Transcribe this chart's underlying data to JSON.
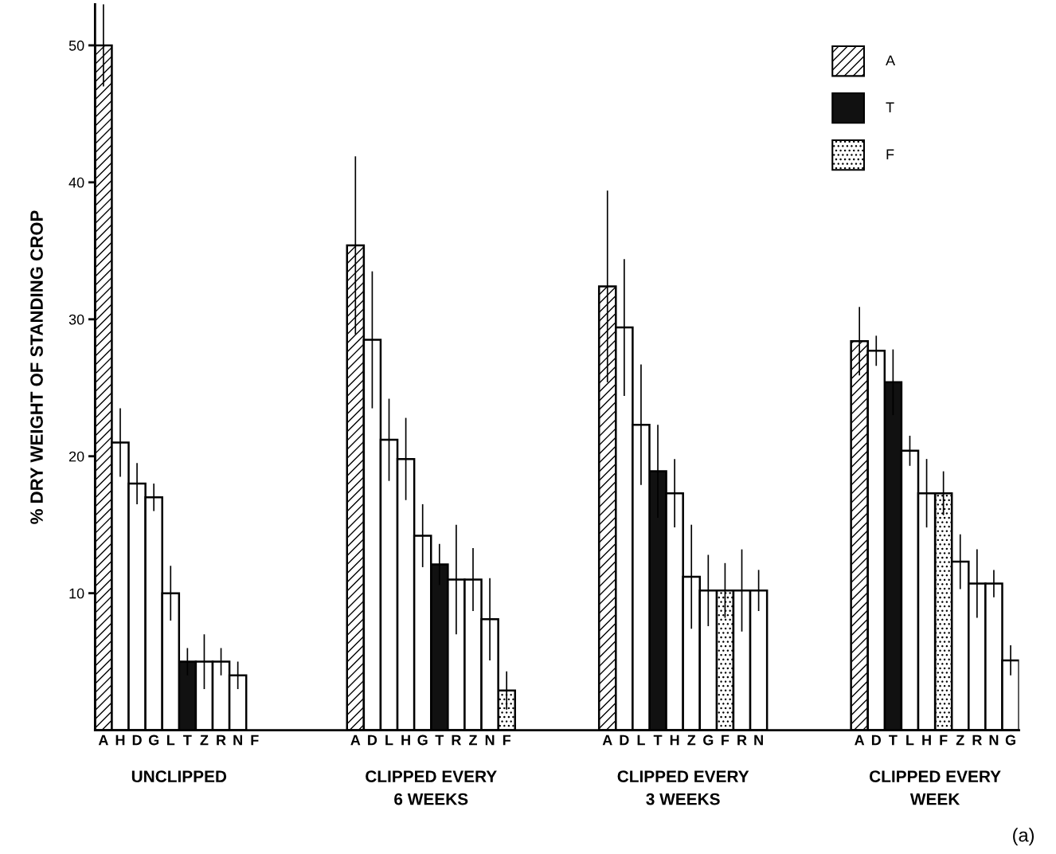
{
  "chart_data": {
    "type": "bar",
    "ylabel": "% DRY WEIGHT OF STANDING CROP",
    "categories": [
      "A",
      "H",
      "D",
      "G",
      "L",
      "T",
      "Z",
      "R",
      "N",
      "F",
      null,
      null,
      null,
      null,
      null,
      "A",
      "D",
      "L",
      "H",
      "G",
      "T",
      "R",
      "Z",
      "N",
      "F",
      null,
      null,
      null,
      null,
      null,
      "A",
      "D",
      "L",
      "T",
      "H",
      "Z",
      "G",
      "F",
      "R",
      "N",
      null,
      null,
      null,
      null,
      null,
      "A",
      "D",
      "T",
      "L",
      "H",
      "F",
      "Z",
      "R",
      "N",
      "G"
    ],
    "ylim": [
      0,
      53
    ],
    "yticks": [
      10,
      20,
      30,
      40,
      50
    ],
    "legend": "top right",
    "annotations": [
      "UNCLIPPED",
      "CLIPPED EVERY\n6 WEEKS",
      "CLIPPED EVERY\n3 WEEKS",
      "CLIPPED EVERY\nWEEK",
      "(a)"
    ],
    "series": [
      {
        "name": "A",
        "color": "#000000",
        "values": [
          50,
          null,
          null,
          null,
          null,
          null,
          null,
          null,
          null,
          null,
          null,
          null,
          null,
          null,
          null,
          35.4,
          null,
          null,
          null,
          null,
          null,
          null,
          null,
          null,
          null,
          null,
          null,
          null,
          null,
          null,
          32.4,
          null,
          null,
          null,
          null,
          null,
          null,
          null,
          null,
          null,
          null,
          null,
          null,
          null,
          null,
          28.4,
          null,
          null,
          null,
          null,
          null,
          null,
          null,
          null,
          null
        ],
        "errors": [
          3,
          null,
          null,
          null,
          null,
          null,
          null,
          null,
          null,
          null,
          null,
          null,
          null,
          null,
          null,
          6.5,
          null,
          null,
          null,
          null,
          null,
          null,
          null,
          null,
          null,
          null,
          null,
          null,
          null,
          null,
          7,
          null,
          null,
          null,
          null,
          null,
          null,
          null,
          null,
          null,
          null,
          null,
          null,
          null,
          null,
          2.5,
          null,
          null,
          null,
          null,
          null,
          null,
          null,
          null,
          null
        ]
      },
      {
        "name": "T",
        "color": "#111111",
        "values": [
          null,
          null,
          null,
          null,
          null,
          5,
          null,
          null,
          null,
          null,
          null,
          null,
          null,
          null,
          null,
          null,
          null,
          null,
          null,
          null,
          12.1,
          null,
          null,
          null,
          null,
          null,
          null,
          null,
          null,
          null,
          null,
          null,
          null,
          18.9,
          null,
          null,
          null,
          null,
          null,
          null,
          null,
          null,
          null,
          null,
          null,
          null,
          null,
          25.4,
          null,
          null,
          null,
          null,
          null,
          null,
          null
        ],
        "errors": [
          null,
          null,
          null,
          null,
          null,
          1,
          null,
          null,
          null,
          null,
          null,
          null,
          null,
          null,
          null,
          null,
          null,
          null,
          null,
          null,
          1.5,
          null,
          null,
          null,
          null,
          null,
          null,
          null,
          null,
          null,
          null,
          null,
          null,
          3.4,
          null,
          null,
          null,
          null,
          null,
          null,
          null,
          null,
          null,
          null,
          null,
          null,
          null,
          2.4,
          null,
          null,
          null,
          null,
          null,
          null,
          null
        ]
      },
      {
        "name": "F",
        "color": "#000000",
        "values": [
          null,
          null,
          null,
          null,
          null,
          null,
          null,
          null,
          null,
          null,
          null,
          null,
          null,
          null,
          null,
          null,
          null,
          null,
          null,
          null,
          null,
          null,
          null,
          null,
          2.9,
          null,
          null,
          null,
          null,
          null,
          null,
          null,
          null,
          null,
          null,
          null,
          null,
          10.2,
          null,
          null,
          null,
          null,
          null,
          null,
          null,
          null,
          null,
          null,
          null,
          null,
          17.3,
          null,
          null,
          null,
          null
        ],
        "errors": [
          null,
          null,
          null,
          null,
          null,
          null,
          null,
          null,
          null,
          null,
          null,
          null,
          null,
          null,
          null,
          null,
          null,
          null,
          null,
          null,
          null,
          null,
          null,
          null,
          1.4,
          null,
          null,
          null,
          null,
          null,
          null,
          null,
          null,
          null,
          null,
          null,
          null,
          2,
          null,
          null,
          null,
          null,
          null,
          null,
          null,
          null,
          null,
          null,
          null,
          null,
          1.6,
          null,
          null,
          null,
          null
        ]
      },
      {
        "color": "#ffffff",
        "values": [
          null,
          21,
          18,
          17,
          10,
          null,
          5,
          5,
          4,
          null,
          null,
          null,
          null,
          null,
          null,
          null,
          28.5,
          21.2,
          19.8,
          14.2,
          null,
          11,
          11,
          8.1,
          null,
          null,
          null,
          null,
          null,
          null,
          null,
          29.4,
          22.3,
          null,
          17.3,
          11.2,
          10.2,
          null,
          10.2,
          10.2,
          null,
          null,
          null,
          null,
          null,
          null,
          27.7,
          null,
          20.4,
          17.3,
          null,
          12.3,
          10.7,
          10.7,
          5.1
        ],
        "errors": [
          null,
          2.5,
          1.5,
          1,
          2,
          null,
          2,
          1,
          1,
          null,
          null,
          null,
          null,
          null,
          null,
          null,
          5,
          3,
          3,
          2.3,
          null,
          4,
          2.3,
          3,
          null,
          null,
          null,
          null,
          null,
          null,
          null,
          5,
          4.4,
          null,
          2.5,
          3.8,
          2.6,
          null,
          3,
          1.5,
          null,
          null,
          null,
          null,
          null,
          null,
          1.1,
          null,
          1.1,
          2.5,
          null,
          2,
          2.5,
          1,
          1.1
        ]
      }
    ]
  }
}
